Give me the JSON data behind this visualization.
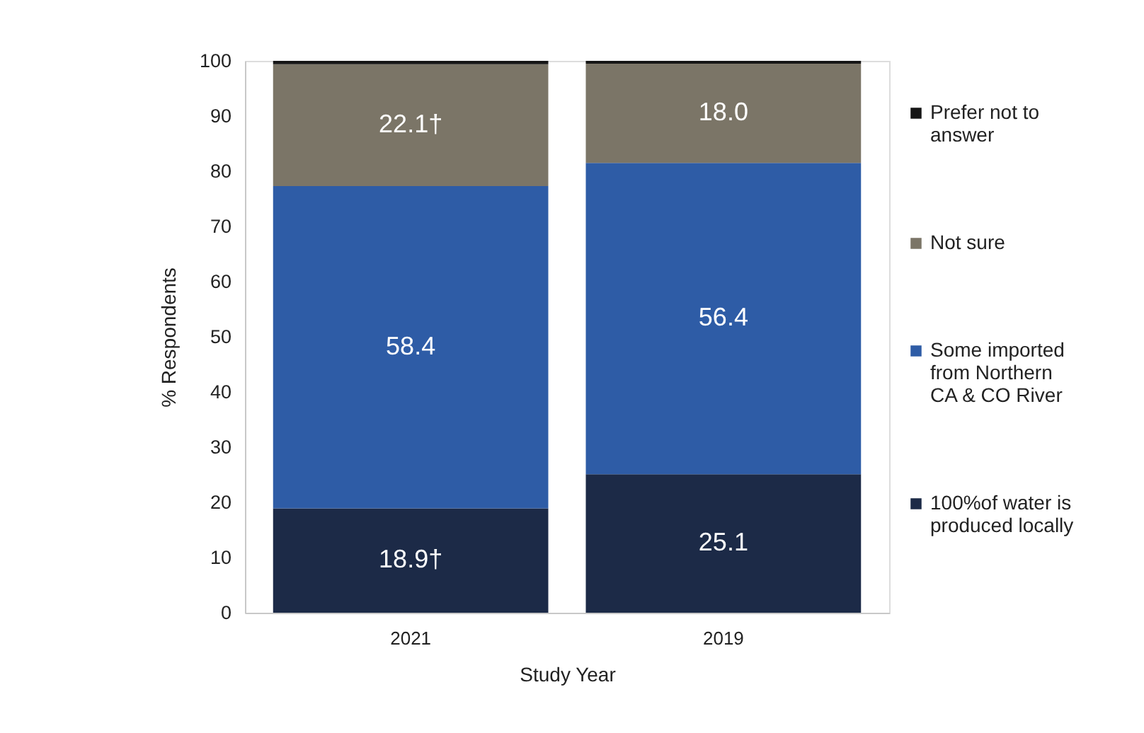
{
  "chart_data": {
    "type": "bar",
    "stacked": true,
    "xlabel": "Study Year",
    "ylabel": "% Respondents",
    "categories": [
      "2021",
      "2019"
    ],
    "ylim": [
      0,
      100
    ],
    "yticks": [
      0,
      10,
      20,
      30,
      40,
      50,
      60,
      70,
      80,
      90,
      100
    ],
    "grid": false,
    "legend": "right",
    "series": [
      {
        "name": "100%of water is produced locally",
        "color": "#1c2a47",
        "values": [
          18.9,
          25.1
        ],
        "value_labels": [
          "18.9†",
          "25.1"
        ]
      },
      {
        "name": "Some imported from Northern CA & CO River",
        "color": "#2e5ca6",
        "values": [
          58.4,
          56.4
        ],
        "value_labels": [
          "58.4",
          "56.4"
        ]
      },
      {
        "name": "Not sure",
        "color": "#7b7567",
        "values": [
          22.1,
          18.0
        ],
        "value_labels": [
          "22.1†",
          "18.0"
        ]
      },
      {
        "name": "Prefer not to answer",
        "color": "#161616",
        "values": [
          0.6,
          0.5
        ]
      }
    ]
  }
}
